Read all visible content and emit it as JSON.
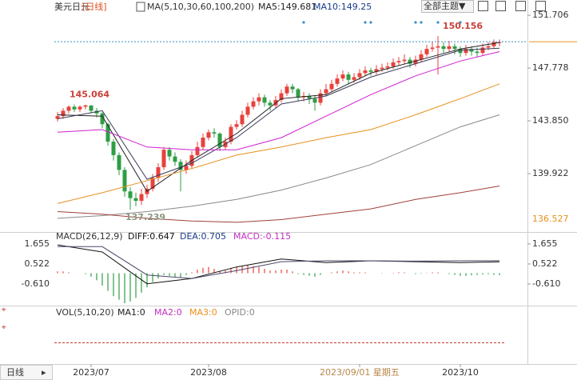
{
  "header": {
    "symbol": "美元日元",
    "period": "[日线]",
    "ma_params": "MA(5,10,30,60,100,200)",
    "ma5": "MA5:149.681",
    "ma10": "MA10:149.25",
    "theme_button": "全部主题▼"
  },
  "macd_legend": {
    "params": "MACD(26,12,9)",
    "diff": "DIFF:0.647",
    "dea": "DEA:0.705",
    "macd": "MACD:-0.115"
  },
  "vol_legend": {
    "params": "VOL(5,10,20)",
    "ma1": "MA1:0",
    "ma2": "MA2:0",
    "ma3": "MA3:0",
    "opid": "OPID:0"
  },
  "footer": {
    "period_tab": "日线"
  },
  "chart_data": [
    {
      "type": "candlestick",
      "up_color": "#e8413c",
      "down_color": "#2e9e44",
      "x": [
        0,
        1,
        2,
        3,
        4,
        5,
        6,
        7,
        8,
        9,
        10,
        11,
        12,
        13,
        14,
        15,
        16,
        17,
        18,
        19,
        20,
        21,
        22,
        23,
        24,
        25,
        26,
        27,
        28,
        29,
        30,
        31,
        32,
        33,
        34,
        35,
        36,
        37,
        38,
        39,
        40,
        41,
        42,
        43,
        44,
        45,
        46,
        47,
        48,
        49,
        50,
        51,
        52,
        53,
        54,
        55,
        56,
        57,
        58,
        59,
        60,
        61,
        62,
        63,
        64,
        65,
        66,
        67,
        68,
        69,
        70,
        71,
        72,
        73,
        74,
        75,
        76,
        77,
        78,
        79
      ],
      "open": [
        144.0,
        144.2,
        144.6,
        144.9,
        144.7,
        144.9,
        145.0,
        144.6,
        144.4,
        143.6,
        142.3,
        141.3,
        140.2,
        138.6,
        138.1,
        137.9,
        138.4,
        138.8,
        139.6,
        140.4,
        141.7,
        141.2,
        140.8,
        140.2,
        140.5,
        141.3,
        141.9,
        142.6,
        143.0,
        142.9,
        141.9,
        142.3,
        143.4,
        143.6,
        144.3,
        144.9,
        145.3,
        145.6,
        145.2,
        145.0,
        145.4,
        145.9,
        146.4,
        146.2,
        145.6,
        145.7,
        145.5,
        145.2,
        145.9,
        146.2,
        146.6,
        147.0,
        147.3,
        146.9,
        147.1,
        147.4,
        147.6,
        147.5,
        147.7,
        147.8,
        147.9,
        148.2,
        148.3,
        148.4,
        148.1,
        148.4,
        148.8,
        149.2,
        149.3,
        149.4,
        149.2,
        149.4,
        149.2,
        148.9,
        149.2,
        149.0,
        148.9,
        149.3,
        149.4,
        149.7
      ],
      "high": [
        144.5,
        144.8,
        145.0,
        145.064,
        145.0,
        145.05,
        145.0,
        144.8,
        144.5,
        143.7,
        142.5,
        141.5,
        140.4,
        138.9,
        138.5,
        138.8,
        139.1,
        139.9,
        140.7,
        141.9,
        141.9,
        141.5,
        141.0,
        140.9,
        141.6,
        142.3,
        142.9,
        143.2,
        143.3,
        143.0,
        142.6,
        143.6,
        143.9,
        144.6,
        145.2,
        145.6,
        145.9,
        145.8,
        145.4,
        145.7,
        146.2,
        146.6,
        146.6,
        146.3,
        146.0,
        145.9,
        145.7,
        146.2,
        146.6,
        146.9,
        147.3,
        147.6,
        147.5,
        147.4,
        147.7,
        147.9,
        147.8,
        148.0,
        148.1,
        148.2,
        148.5,
        148.6,
        148.8,
        148.6,
        148.7,
        149.1,
        149.5,
        149.7,
        150.156,
        149.7,
        149.8,
        149.6,
        149.4,
        149.5,
        149.4,
        149.3,
        149.6,
        149.7,
        149.9,
        149.9
      ],
      "low": [
        143.8,
        144.0,
        144.4,
        144.5,
        144.5,
        144.7,
        144.4,
        144.1,
        143.3,
        142.0,
        140.9,
        139.8,
        138.2,
        137.239,
        137.5,
        137.6,
        138.1,
        138.6,
        139.3,
        140.2,
        140.9,
        140.5,
        138.6,
        139.9,
        140.3,
        141.1,
        141.7,
        142.4,
        142.6,
        141.6,
        141.7,
        142.1,
        143.2,
        143.4,
        144.1,
        144.7,
        145.0,
        144.9,
        144.6,
        144.8,
        145.2,
        145.7,
        145.9,
        145.3,
        145.3,
        145.1,
        144.6,
        145.0,
        145.7,
        146.0,
        146.4,
        146.8,
        146.6,
        146.7,
        146.9,
        147.2,
        147.2,
        147.3,
        147.5,
        147.6,
        147.7,
        148.0,
        148.1,
        147.8,
        147.9,
        148.2,
        148.6,
        149.0,
        147.3,
        148.9,
        149.0,
        148.8,
        148.6,
        148.7,
        148.7,
        148.6,
        148.7,
        149.1,
        149.2,
        149.4
      ],
      "close": [
        144.2,
        144.6,
        144.9,
        144.7,
        144.9,
        145.0,
        144.6,
        144.4,
        143.6,
        142.3,
        141.3,
        140.2,
        138.6,
        138.1,
        137.9,
        138.4,
        138.8,
        139.6,
        140.4,
        141.7,
        141.2,
        140.8,
        140.2,
        140.5,
        141.3,
        141.9,
        142.6,
        143.0,
        142.9,
        141.9,
        142.3,
        143.4,
        143.6,
        144.3,
        144.9,
        145.3,
        145.6,
        145.2,
        145.0,
        145.4,
        145.9,
        146.4,
        146.2,
        145.6,
        145.7,
        145.5,
        145.2,
        145.9,
        146.2,
        146.6,
        147.0,
        147.3,
        146.9,
        147.1,
        147.4,
        147.6,
        147.5,
        147.7,
        147.8,
        147.9,
        148.2,
        148.3,
        148.4,
        148.1,
        148.4,
        148.8,
        149.2,
        149.3,
        149.4,
        149.2,
        149.4,
        149.2,
        148.9,
        149.2,
        149.0,
        148.9,
        149.3,
        149.4,
        149.7,
        149.7
      ],
      "series": [
        {
          "color": "#222222",
          "x": [
            0,
            8,
            16,
            24,
            32,
            40,
            48,
            56,
            64,
            72,
            79
          ],
          "values": [
            144.3,
            144.2,
            138.6,
            140.9,
            142.9,
            145.5,
            145.8,
            147.4,
            148.3,
            149.2,
            149.681
          ]
        },
        {
          "color": "#3a3a5a",
          "x": [
            0,
            8,
            16,
            24,
            32,
            40,
            48,
            56,
            64,
            72,
            79
          ],
          "values": [
            144.0,
            144.6,
            139.5,
            140.7,
            142.6,
            145.1,
            145.7,
            147.1,
            148.1,
            149.1,
            149.25
          ]
        },
        {
          "color": "#d020d0",
          "x": [
            0,
            8,
            16,
            24,
            32,
            40,
            48,
            56,
            64,
            72,
            79
          ],
          "values": [
            143.0,
            143.2,
            141.9,
            141.7,
            141.7,
            142.6,
            144.2,
            145.8,
            147.2,
            148.3,
            149.0
          ]
        },
        {
          "color": "#e8901c",
          "x": [
            0,
            8,
            16,
            24,
            32,
            40,
            48,
            56,
            64,
            72,
            79
          ],
          "values": [
            137.7,
            138.5,
            139.4,
            140.3,
            141.3,
            141.9,
            142.6,
            143.2,
            144.3,
            145.5,
            146.6
          ]
        },
        {
          "color": "#888888",
          "x": [
            0,
            8,
            16,
            24,
            32,
            40,
            48,
            56,
            64,
            72,
            79
          ],
          "values": [
            136.6,
            136.8,
            137.1,
            137.5,
            138.0,
            138.7,
            139.6,
            140.6,
            142.0,
            143.4,
            144.3
          ]
        },
        {
          "color": "#a0403a",
          "x": [
            0,
            8,
            16,
            24,
            32,
            40,
            48,
            56,
            64,
            72,
            79
          ],
          "values": [
            137.1,
            136.9,
            136.6,
            136.4,
            136.3,
            136.5,
            136.9,
            137.3,
            138.0,
            138.5,
            139.0
          ]
        }
      ],
      "annotations": [
        {
          "value": 145.064,
          "x": 3,
          "color": "#c8413a"
        },
        {
          "value": 137.239,
          "x": 13,
          "color": "#8a9a80"
        },
        {
          "value": 150.156,
          "x": 68,
          "color": "#c8413a"
        }
      ],
      "last_price": 149.74,
      "visible_low": 136.527,
      "xlim": [
        -0.571,
        84
      ],
      "ylim": [
        135.58,
        152.84
      ],
      "yticks": [
        151.706,
        147.778,
        {
          "value": 143.85,
          "label": "143.850"
        },
        139.922
      ],
      "xticks": [
        {
          "value": 6,
          "label": "2023/07"
        },
        {
          "value": 27,
          "label": "2023/08"
        },
        {
          "value": 54,
          "label": "2023/09/01 星期五"
        },
        {
          "value": 72,
          "label": "2023/10"
        }
      ],
      "highlight_xtick": 2,
      "grid": false
    },
    {
      "type": "macd",
      "up_color": "#e8413c",
      "down_color": "#2e9e44",
      "histogram": [
        0.1,
        0.1,
        0.05,
        0,
        0,
        -0.05,
        -0.2,
        -0.4,
        -0.7,
        -1.0,
        -1.3,
        -1.5,
        -1.7,
        -1.6,
        -1.4,
        -1.1,
        -0.8,
        -0.5,
        -0.3,
        -0.1,
        -0.15,
        -0.2,
        -0.25,
        -0.1,
        0.05,
        0.2,
        0.3,
        0.35,
        0.25,
        0.1,
        0.15,
        0.3,
        0.35,
        0.4,
        0.45,
        0.4,
        0.35,
        0.25,
        0.15,
        0.15,
        0.2,
        0.2,
        0.1,
        -0.05,
        -0.1,
        -0.15,
        -0.2,
        -0.1,
        0,
        0.05,
        0.1,
        0.15,
        0.1,
        0.05,
        0.05,
        0.05,
        0,
        0,
        -0.02,
        0,
        0.02,
        0.05,
        0.05,
        0,
        -0.05,
        -0.03,
        0.02,
        0.05,
        0.05,
        0,
        -0.05,
        -0.1,
        -0.15,
        -0.15,
        -0.12,
        -0.1,
        -0.08,
        -0.06,
        -0.1,
        -0.115
      ],
      "series": [
        {
          "color": "#111111",
          "x": [
            0,
            8,
            16,
            24,
            32,
            40,
            48,
            56,
            64,
            72,
            79
          ],
          "values": [
            1.6,
            1.2,
            -0.6,
            -0.3,
            0.35,
            0.8,
            0.6,
            0.7,
            0.65,
            0.6,
            0.647
          ]
        },
        {
          "color": "#4a4a6a",
          "x": [
            0,
            8,
            16,
            24,
            32,
            40,
            48,
            56,
            64,
            72,
            79
          ],
          "values": [
            1.5,
            1.5,
            -0.1,
            -0.3,
            0.15,
            0.65,
            0.7,
            0.7,
            0.68,
            0.7,
            0.705
          ]
        }
      ],
      "ylim": [
        -1.88,
        2.33
      ],
      "yticks": [
        1.655,
        0.522,
        {
          "value": -0.61,
          "label": "-0.610"
        }
      ]
    }
  ]
}
